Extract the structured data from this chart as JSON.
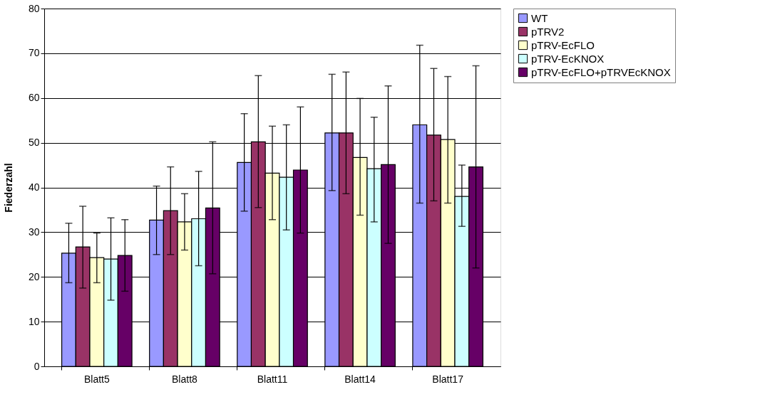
{
  "chart_data": {
    "type": "bar",
    "ylabel": "Fiederzahl",
    "categories": [
      "Blatt5",
      "Blatt8",
      "Blatt11",
      "Blatt14",
      "Blatt17"
    ],
    "series": [
      {
        "name": "WT",
        "color": "#9999ff",
        "values": [
          25.3,
          32.7,
          45.6,
          52.2,
          54.0
        ],
        "errors": [
          [
            18.7,
            32.0
          ],
          [
            25.0,
            40.3
          ],
          [
            34.7,
            56.5
          ],
          [
            39.3,
            65.3
          ],
          [
            36.5,
            71.8
          ]
        ]
      },
      {
        "name": "pTRV2",
        "color": "#993366",
        "values": [
          26.7,
          34.8,
          50.2,
          52.2,
          51.7
        ],
        "errors": [
          [
            17.5,
            35.8
          ],
          [
            25.0,
            44.6
          ],
          [
            35.5,
            65.0
          ],
          [
            38.6,
            65.8
          ],
          [
            37.0,
            66.6
          ]
        ]
      },
      {
        "name": "pTRV-EcFLO",
        "color": "#ffffcc",
        "values": [
          24.3,
          32.3,
          43.2,
          46.7,
          50.7
        ],
        "errors": [
          [
            18.7,
            29.8
          ],
          [
            26.0,
            38.6
          ],
          [
            32.8,
            53.7
          ],
          [
            33.8,
            59.9
          ],
          [
            36.5,
            64.8
          ]
        ]
      },
      {
        "name": "pTRV-EcKNOX",
        "color": "#ccffff",
        "values": [
          24.0,
          33.0,
          42.3,
          44.2,
          38.0
        ],
        "errors": [
          [
            14.8,
            33.2
          ],
          [
            22.5,
            43.6
          ],
          [
            30.5,
            54.0
          ],
          [
            32.3,
            55.7
          ],
          [
            31.3,
            45.0
          ]
        ]
      },
      {
        "name": "pTRV-EcFLO+pTRVEcKNOX",
        "color": "#660066",
        "values": [
          24.8,
          35.4,
          43.9,
          45.1,
          44.6
        ],
        "errors": [
          [
            16.8,
            32.8
          ],
          [
            20.7,
            50.2
          ],
          [
            29.8,
            58.0
          ],
          [
            27.5,
            62.7
          ],
          [
            22.0,
            67.2
          ]
        ]
      }
    ],
    "ylim": [
      0,
      80
    ],
    "yticks": [
      0,
      10,
      20,
      30,
      40,
      50,
      60,
      70,
      80
    ],
    "grid": "y",
    "legend": "right"
  }
}
